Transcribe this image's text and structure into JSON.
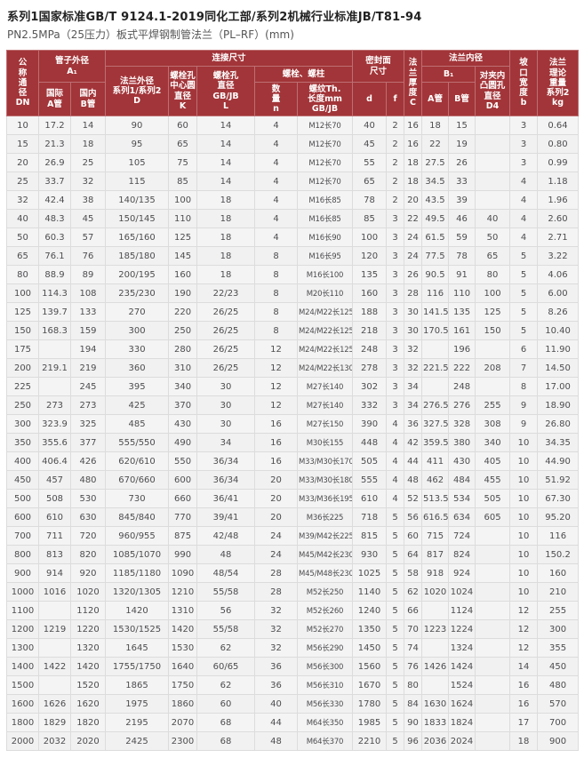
{
  "page": {
    "title": "系列1国家标准GB/T 9124.1-2019同化工部/系列2机械行业标准JB/T81-94",
    "subtitle": "PN2.5MPa（25压力）板式平焊钢制管法兰（PL–RF）(mm)"
  },
  "colors": {
    "header_bg": "#a23539",
    "header_text": "#ffffff",
    "body_bg": "#f4f4f5",
    "border": "#dcdcdd",
    "text": "#4d4d4f"
  },
  "table": {
    "header": {
      "dn": "公\n称\n通\n径\nDN",
      "pipe_od": "管子外径\nA₁",
      "intl_a": "国际\nA管",
      "domestic_b": "国内\nB管",
      "connection": "连接尺寸",
      "flange_od": "法兰外径\n系列1/系列2\nD",
      "bolt_circle": "螺栓孔\n中心圆\n直径\nK",
      "bolt_hole": "螺栓孔\n直径\nGB/JB\nL",
      "bolts": "螺栓、螺柱",
      "qty": "数\n量\nn",
      "thread": "螺纹Th.\n长度mm\nGB/JB",
      "seal_face": "密封面\n尺寸",
      "d": "d",
      "f": "f",
      "thickness": "法\n兰\n厚\n度\nC",
      "bore": "法兰内径",
      "b1": "B₁",
      "bore_a": "A管",
      "bore_b": "B管",
      "d4": "对夹内\n凸圆孔\n直径\nD4",
      "groove": "坡\n口\n宽\n度\nb",
      "weight": "法兰\n理论\n重量\n系列2\nkg"
    },
    "rows": [
      [
        "10",
        "17.2",
        "14",
        "90",
        "60",
        "14",
        "4",
        "M12长70",
        "40",
        "2",
        "16",
        "18",
        "15",
        "",
        "3",
        "0.64"
      ],
      [
        "15",
        "21.3",
        "18",
        "95",
        "65",
        "14",
        "4",
        "M12长70",
        "45",
        "2",
        "16",
        "22",
        "19",
        "",
        "3",
        "0.80"
      ],
      [
        "20",
        "26.9",
        "25",
        "105",
        "75",
        "14",
        "4",
        "M12长70",
        "55",
        "2",
        "18",
        "27.5",
        "26",
        "",
        "3",
        "0.99"
      ],
      [
        "25",
        "33.7",
        "32",
        "115",
        "85",
        "14",
        "4",
        "M12长70",
        "65",
        "2",
        "18",
        "34.5",
        "33",
        "",
        "4",
        "1.18"
      ],
      [
        "32",
        "42.4",
        "38",
        "140/135",
        "100",
        "18",
        "4",
        "M16长85",
        "78",
        "2",
        "20",
        "43.5",
        "39",
        "",
        "4",
        "1.96"
      ],
      [
        "40",
        "48.3",
        "45",
        "150/145",
        "110",
        "18",
        "4",
        "M16长85",
        "85",
        "3",
        "22",
        "49.5",
        "46",
        "40",
        "4",
        "2.60"
      ],
      [
        "50",
        "60.3",
        "57",
        "165/160",
        "125",
        "18",
        "4",
        "M16长90",
        "100",
        "3",
        "24",
        "61.5",
        "59",
        "50",
        "4",
        "2.71"
      ],
      [
        "65",
        "76.1",
        "76",
        "185/180",
        "145",
        "18",
        "8",
        "M16长95",
        "120",
        "3",
        "24",
        "77.5",
        "78",
        "65",
        "5",
        "3.22"
      ],
      [
        "80",
        "88.9",
        "89",
        "200/195",
        "160",
        "18",
        "8",
        "M16长100",
        "135",
        "3",
        "26",
        "90.5",
        "91",
        "80",
        "5",
        "4.06"
      ],
      [
        "100",
        "114.3",
        "108",
        "235/230",
        "190",
        "22/23",
        "8",
        "M20长110",
        "160",
        "3",
        "28",
        "116",
        "110",
        "100",
        "5",
        "6.00"
      ],
      [
        "125",
        "139.7",
        "133",
        "270",
        "220",
        "26/25",
        "8",
        "M24/M22长125",
        "188",
        "3",
        "30",
        "141.5",
        "135",
        "125",
        "5",
        "8.26"
      ],
      [
        "150",
        "168.3",
        "159",
        "300",
        "250",
        "26/25",
        "8",
        "M24/M22长125",
        "218",
        "3",
        "30",
        "170.5",
        "161",
        "150",
        "5",
        "10.40"
      ],
      [
        "175",
        "",
        "194",
        "330",
        "280",
        "26/25",
        "12",
        "M24/M22长125",
        "248",
        "3",
        "32",
        "",
        "196",
        "",
        "6",
        "11.90"
      ],
      [
        "200",
        "219.1",
        "219",
        "360",
        "310",
        "26/25",
        "12",
        "M24/M22长130",
        "278",
        "3",
        "32",
        "221.5",
        "222",
        "208",
        "7",
        "14.50"
      ],
      [
        "225",
        "",
        "245",
        "395",
        "340",
        "30",
        "12",
        "M27长140",
        "302",
        "3",
        "34",
        "",
        "248",
        "",
        "8",
        "17.00"
      ],
      [
        "250",
        "273",
        "273",
        "425",
        "370",
        "30",
        "12",
        "M27长140",
        "332",
        "3",
        "34",
        "276.5",
        "276",
        "255",
        "9",
        "18.90"
      ],
      [
        "300",
        "323.9",
        "325",
        "485",
        "430",
        "30",
        "16",
        "M27长150",
        "390",
        "4",
        "36",
        "327.5",
        "328",
        "308",
        "9",
        "26.80"
      ],
      [
        "350",
        "355.6",
        "377",
        "555/550",
        "490",
        "34",
        "16",
        "M30长155",
        "448",
        "4",
        "42",
        "359.5",
        "380",
        "340",
        "10",
        "34.35"
      ],
      [
        "400",
        "406.4",
        "426",
        "620/610",
        "550",
        "36/34",
        "16",
        "M33/M30长170",
        "505",
        "4",
        "44",
        "411",
        "430",
        "405",
        "10",
        "44.90"
      ],
      [
        "450",
        "457",
        "480",
        "670/660",
        "600",
        "36/34",
        "20",
        "M33/M30长180",
        "555",
        "4",
        "48",
        "462",
        "484",
        "455",
        "10",
        "51.92"
      ],
      [
        "500",
        "508",
        "530",
        "730",
        "660",
        "36/41",
        "20",
        "M33/M36长195",
        "610",
        "4",
        "52",
        "513.5",
        "534",
        "505",
        "10",
        "67.30"
      ],
      [
        "600",
        "610",
        "630",
        "845/840",
        "770",
        "39/41",
        "20",
        "M36长225",
        "718",
        "5",
        "56",
        "616.5",
        "634",
        "605",
        "10",
        "95.20"
      ],
      [
        "700",
        "711",
        "720",
        "960/955",
        "875",
        "42/48",
        "24",
        "M39/M42长225",
        "815",
        "5",
        "60",
        "715",
        "724",
        "",
        "10",
        "116"
      ],
      [
        "800",
        "813",
        "820",
        "1085/1070",
        "990",
        "48",
        "24",
        "M45/M42长230",
        "930",
        "5",
        "64",
        "817",
        "824",
        "",
        "10",
        "150.2"
      ],
      [
        "900",
        "914",
        "920",
        "1185/1180",
        "1090",
        "48/54",
        "28",
        "M45/M48长230",
        "1025",
        "5",
        "58",
        "918",
        "924",
        "",
        "10",
        "160"
      ],
      [
        "1000",
        "1016",
        "1020",
        "1320/1305",
        "1210",
        "55/58",
        "28",
        "M52长250",
        "1140",
        "5",
        "62",
        "1020",
        "1024",
        "",
        "10",
        "210"
      ],
      [
        "1100",
        "",
        "1120",
        "1420",
        "1310",
        "56",
        "32",
        "M52长260",
        "1240",
        "5",
        "66",
        "",
        "1124",
        "",
        "12",
        "255"
      ],
      [
        "1200",
        "1219",
        "1220",
        "1530/1525",
        "1420",
        "55/58",
        "32",
        "M52长270",
        "1350",
        "5",
        "70",
        "1223",
        "1224",
        "",
        "12",
        "300"
      ],
      [
        "1300",
        "",
        "1320",
        "1645",
        "1530",
        "62",
        "32",
        "M56长290",
        "1450",
        "5",
        "74",
        "",
        "1324",
        "",
        "12",
        "355"
      ],
      [
        "1400",
        "1422",
        "1420",
        "1755/1750",
        "1640",
        "60/65",
        "36",
        "M56长300",
        "1560",
        "5",
        "76",
        "1426",
        "1424",
        "",
        "14",
        "450"
      ],
      [
        "1500",
        "",
        "1520",
        "1865",
        "1750",
        "62",
        "36",
        "M56长310",
        "1670",
        "5",
        "80",
        "",
        "1524",
        "",
        "16",
        "480"
      ],
      [
        "1600",
        "1626",
        "1620",
        "1975",
        "1860",
        "60",
        "40",
        "M56长330",
        "1780",
        "5",
        "84",
        "1630",
        "1624",
        "",
        "16",
        "570"
      ],
      [
        "1800",
        "1829",
        "1820",
        "2195",
        "2070",
        "68",
        "44",
        "M64长350",
        "1985",
        "5",
        "90",
        "1833",
        "1824",
        "",
        "17",
        "700"
      ],
      [
        "2000",
        "2032",
        "2020",
        "2425",
        "2300",
        "68",
        "48",
        "M64长370",
        "2210",
        "5",
        "96",
        "2036",
        "2024",
        "",
        "18",
        "900"
      ]
    ]
  }
}
